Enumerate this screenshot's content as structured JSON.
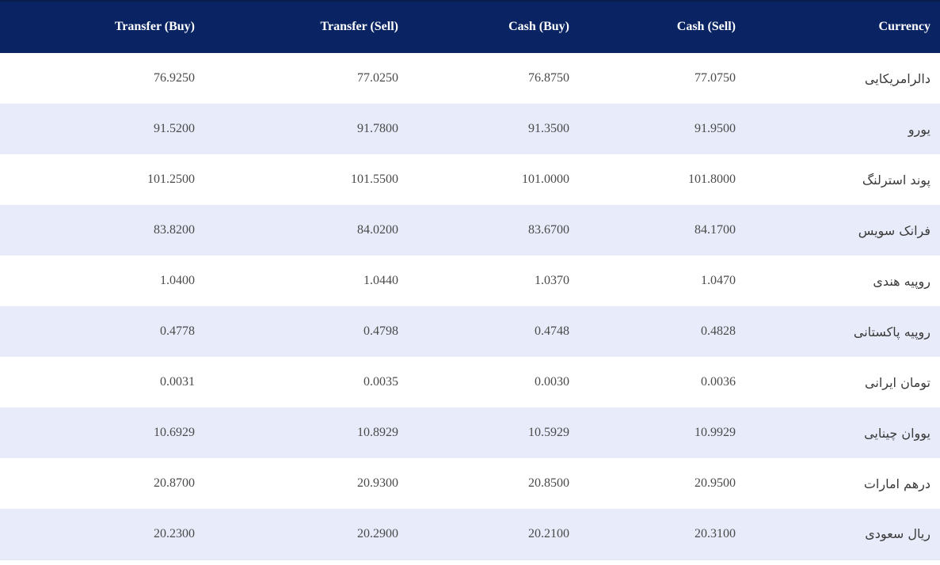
{
  "table": {
    "headers": {
      "transfer_buy": "Transfer (Buy)",
      "transfer_sell": "Transfer (Sell)",
      "cash_buy": "Cash (Buy)",
      "cash_sell": "Cash (Sell)",
      "currency": "Currency"
    },
    "rows": [
      {
        "transfer_buy": "76.9250",
        "transfer_sell": "77.0250",
        "cash_buy": "76.8750",
        "cash_sell": "77.0750",
        "currency": "دالرامریکایی"
      },
      {
        "transfer_buy": "91.5200",
        "transfer_sell": "91.7800",
        "cash_buy": "91.3500",
        "cash_sell": "91.9500",
        "currency": "یورو"
      },
      {
        "transfer_buy": "101.2500",
        "transfer_sell": "101.5500",
        "cash_buy": "101.0000",
        "cash_sell": "101.8000",
        "currency": "پوند استرلنگ"
      },
      {
        "transfer_buy": "83.8200",
        "transfer_sell": "84.0200",
        "cash_buy": "83.6700",
        "cash_sell": "84.1700",
        "currency": "فرانک سویس"
      },
      {
        "transfer_buy": "1.0400",
        "transfer_sell": "1.0440",
        "cash_buy": "1.0370",
        "cash_sell": "1.0470",
        "currency": "روپیه هندی"
      },
      {
        "transfer_buy": "0.4778",
        "transfer_sell": "0.4798",
        "cash_buy": "0.4748",
        "cash_sell": "0.4828",
        "currency": "روپیه پاکستانی"
      },
      {
        "transfer_buy": "0.0031",
        "transfer_sell": "0.0035",
        "cash_buy": "0.0030",
        "cash_sell": "0.0036",
        "currency": "تومان ایرانی"
      },
      {
        "transfer_buy": "10.6929",
        "transfer_sell": "10.8929",
        "cash_buy": "10.5929",
        "cash_sell": "10.9929",
        "currency": "یووان چینایی"
      },
      {
        "transfer_buy": "20.8700",
        "transfer_sell": "20.9300",
        "cash_buy": "20.8500",
        "cash_sell": "20.9500",
        "currency": "درهم امارات"
      },
      {
        "transfer_buy": "20.2300",
        "transfer_sell": "20.2900",
        "cash_buy": "20.2100",
        "cash_sell": "20.3100",
        "currency": "ریال سعودی"
      }
    ]
  },
  "colors": {
    "header_bg": "#0a2463",
    "row_alt_bg": "#e8ebfa",
    "text": "#4a4a4a"
  }
}
